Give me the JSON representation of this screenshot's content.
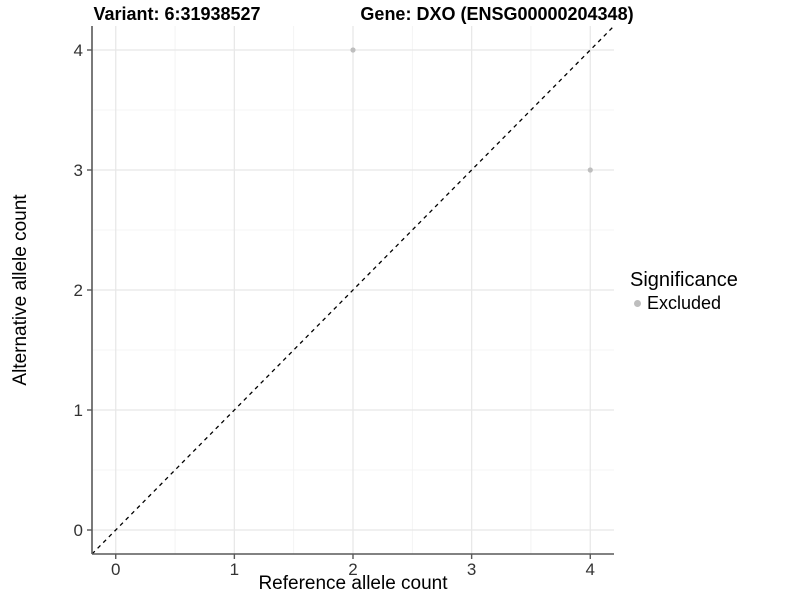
{
  "chart_data": {
    "type": "scatter",
    "title_left": "Variant: 6:31938527",
    "title_right": "Gene: DXO (ENSG00000204348)",
    "xlabel": "Reference allele count",
    "ylabel": "Alternative allele count",
    "xlim": [
      -0.2,
      4.2
    ],
    "ylim": [
      -0.2,
      4.2
    ],
    "xticks": [
      0,
      1,
      2,
      3,
      4
    ],
    "yticks": [
      0,
      1,
      2,
      3,
      4
    ],
    "xminor": [
      0.5,
      1.5,
      2.5,
      3.5
    ],
    "yminor": [
      0.5,
      1.5,
      2.5,
      3.5
    ],
    "grid": "major and minor gridlines on white background",
    "series": [
      {
        "name": "Excluded",
        "color": "#bebebe",
        "point_radius": 2.6,
        "points": [
          {
            "x": 2,
            "y": 4
          },
          {
            "x": 4,
            "y": 3
          }
        ]
      }
    ],
    "reference_line": {
      "slope": 1,
      "intercept": 0,
      "style": "dashed",
      "color": "#000000"
    },
    "legend": {
      "title": "Significance",
      "position": "right",
      "items": [
        {
          "label": "Excluded",
          "color": "#bebebe"
        }
      ]
    }
  },
  "colors": {
    "background": "#ffffff",
    "grid_major": "#e8e8e8",
    "grid_minor": "#f1f1f1",
    "axis_line": "#595959",
    "tick_mark": "#595959",
    "tick_label": "#333333",
    "title_text": "#000000"
  }
}
